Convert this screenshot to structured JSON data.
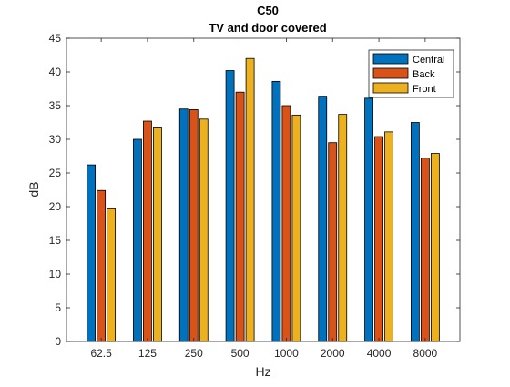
{
  "chart_data": {
    "type": "bar",
    "title": "C50",
    "subtitle": "TV and door  covered",
    "xlabel": "Hz",
    "ylabel": "dB",
    "categories": [
      "62.5",
      "125",
      "250",
      "500",
      "1000",
      "2000",
      "4000",
      "8000"
    ],
    "ylim": [
      0,
      45
    ],
    "yticks": [
      0,
      5,
      10,
      15,
      20,
      25,
      30,
      35,
      40,
      45
    ],
    "grid": false,
    "legend_position": "top-right",
    "series": [
      {
        "name": "Central",
        "color": "#0072BD",
        "values": [
          26.2,
          30.0,
          34.5,
          40.2,
          38.6,
          36.4,
          36.1,
          32.5
        ]
      },
      {
        "name": "Back",
        "color": "#D95319",
        "values": [
          22.4,
          32.7,
          34.4,
          37.0,
          35.0,
          29.5,
          30.4,
          27.2
        ]
      },
      {
        "name": "Front",
        "color": "#EDB120",
        "values": [
          19.8,
          31.7,
          33.0,
          42.0,
          33.6,
          33.7,
          31.1,
          27.9
        ]
      }
    ]
  }
}
